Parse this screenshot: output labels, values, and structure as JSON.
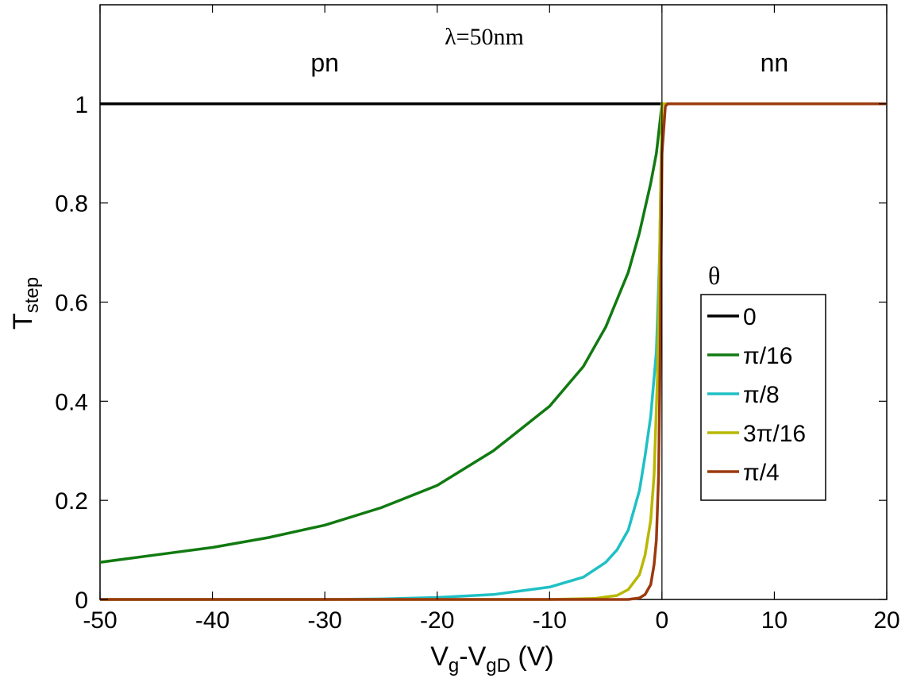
{
  "chart_data": {
    "type": "line",
    "title": "",
    "annotation": "λ=50nm",
    "xlabel": {
      "main": "V",
      "sub1": "g",
      "mid": "-V",
      "sub2": "gD",
      "tail": " (V)"
    },
    "ylabel": {
      "main": "T",
      "sub": "step"
    },
    "xlim": [
      -50,
      20
    ],
    "ylim": [
      0,
      1.2
    ],
    "x_ticks": [
      -50,
      -40,
      -30,
      -20,
      -10,
      0,
      10,
      20
    ],
    "x_tick_labels": [
      "-50",
      "-40",
      "-30",
      "-20",
      "-10",
      "0",
      "10",
      "20"
    ],
    "y_ticks": [
      0,
      0.2,
      0.4,
      0.6,
      0.8,
      1
    ],
    "y_tick_labels": [
      "0",
      "0.2",
      "0.4",
      "0.6",
      "0.8",
      "1"
    ],
    "regions": [
      {
        "label": "pn",
        "x": -30
      },
      {
        "label": "nn",
        "x": 10
      }
    ],
    "divider_x": 0,
    "grid": false,
    "legend": {
      "title": "θ",
      "placement": "right"
    },
    "series": [
      {
        "name": "0",
        "color": "#000000",
        "x": [
          -50,
          -40,
          -30,
          -20,
          -10,
          -5,
          0,
          5,
          10,
          20
        ],
        "y": [
          1,
          1,
          1,
          1,
          1,
          1,
          1,
          1,
          1,
          1
        ]
      },
      {
        "name": "π/16",
        "color": "#117a11",
        "x": [
          -50,
          -45,
          -40,
          -35,
          -30,
          -25,
          -20,
          -15,
          -10,
          -7,
          -5,
          -3,
          -2,
          -1,
          -0.5,
          0,
          0.5,
          5,
          10,
          20
        ],
        "y": [
          0.075,
          0.09,
          0.105,
          0.125,
          0.15,
          0.185,
          0.23,
          0.3,
          0.39,
          0.47,
          0.55,
          0.66,
          0.74,
          0.84,
          0.9,
          1,
          1,
          1,
          1,
          1
        ]
      },
      {
        "name": "π/8",
        "color": "#1fc0c4",
        "x": [
          -50,
          -40,
          -30,
          -25,
          -20,
          -15,
          -10,
          -7,
          -5,
          -4,
          -3,
          -2,
          -1.5,
          -1,
          -0.5,
          -0.2,
          0,
          0.5,
          5,
          10,
          20
        ],
        "y": [
          0,
          0,
          0,
          0.001,
          0.004,
          0.01,
          0.025,
          0.045,
          0.075,
          0.1,
          0.14,
          0.22,
          0.29,
          0.37,
          0.5,
          0.7,
          1,
          1,
          1,
          1,
          1
        ]
      },
      {
        "name": "3π/16",
        "color": "#b8b800",
        "x": [
          -50,
          -20,
          -10,
          -6,
          -4,
          -3,
          -2,
          -1.5,
          -1,
          -0.7,
          -0.4,
          -0.2,
          0,
          0.5,
          5,
          10,
          20
        ],
        "y": [
          0,
          0,
          0,
          0.002,
          0.008,
          0.02,
          0.05,
          0.09,
          0.16,
          0.25,
          0.45,
          0.7,
          1,
          1,
          1,
          1,
          1
        ]
      },
      {
        "name": "π/4",
        "color": "#9b3a0e",
        "x": [
          -50,
          -20,
          -5,
          -3,
          -2,
          -1.5,
          -1,
          -0.7,
          -0.5,
          -0.3,
          -0.15,
          0,
          0.3,
          0.5,
          5,
          10,
          20
        ],
        "y": [
          0,
          0,
          0,
          0,
          0.003,
          0.01,
          0.03,
          0.07,
          0.12,
          0.25,
          0.5,
          0.9,
          0.995,
          1,
          1,
          1,
          1
        ]
      }
    ]
  }
}
